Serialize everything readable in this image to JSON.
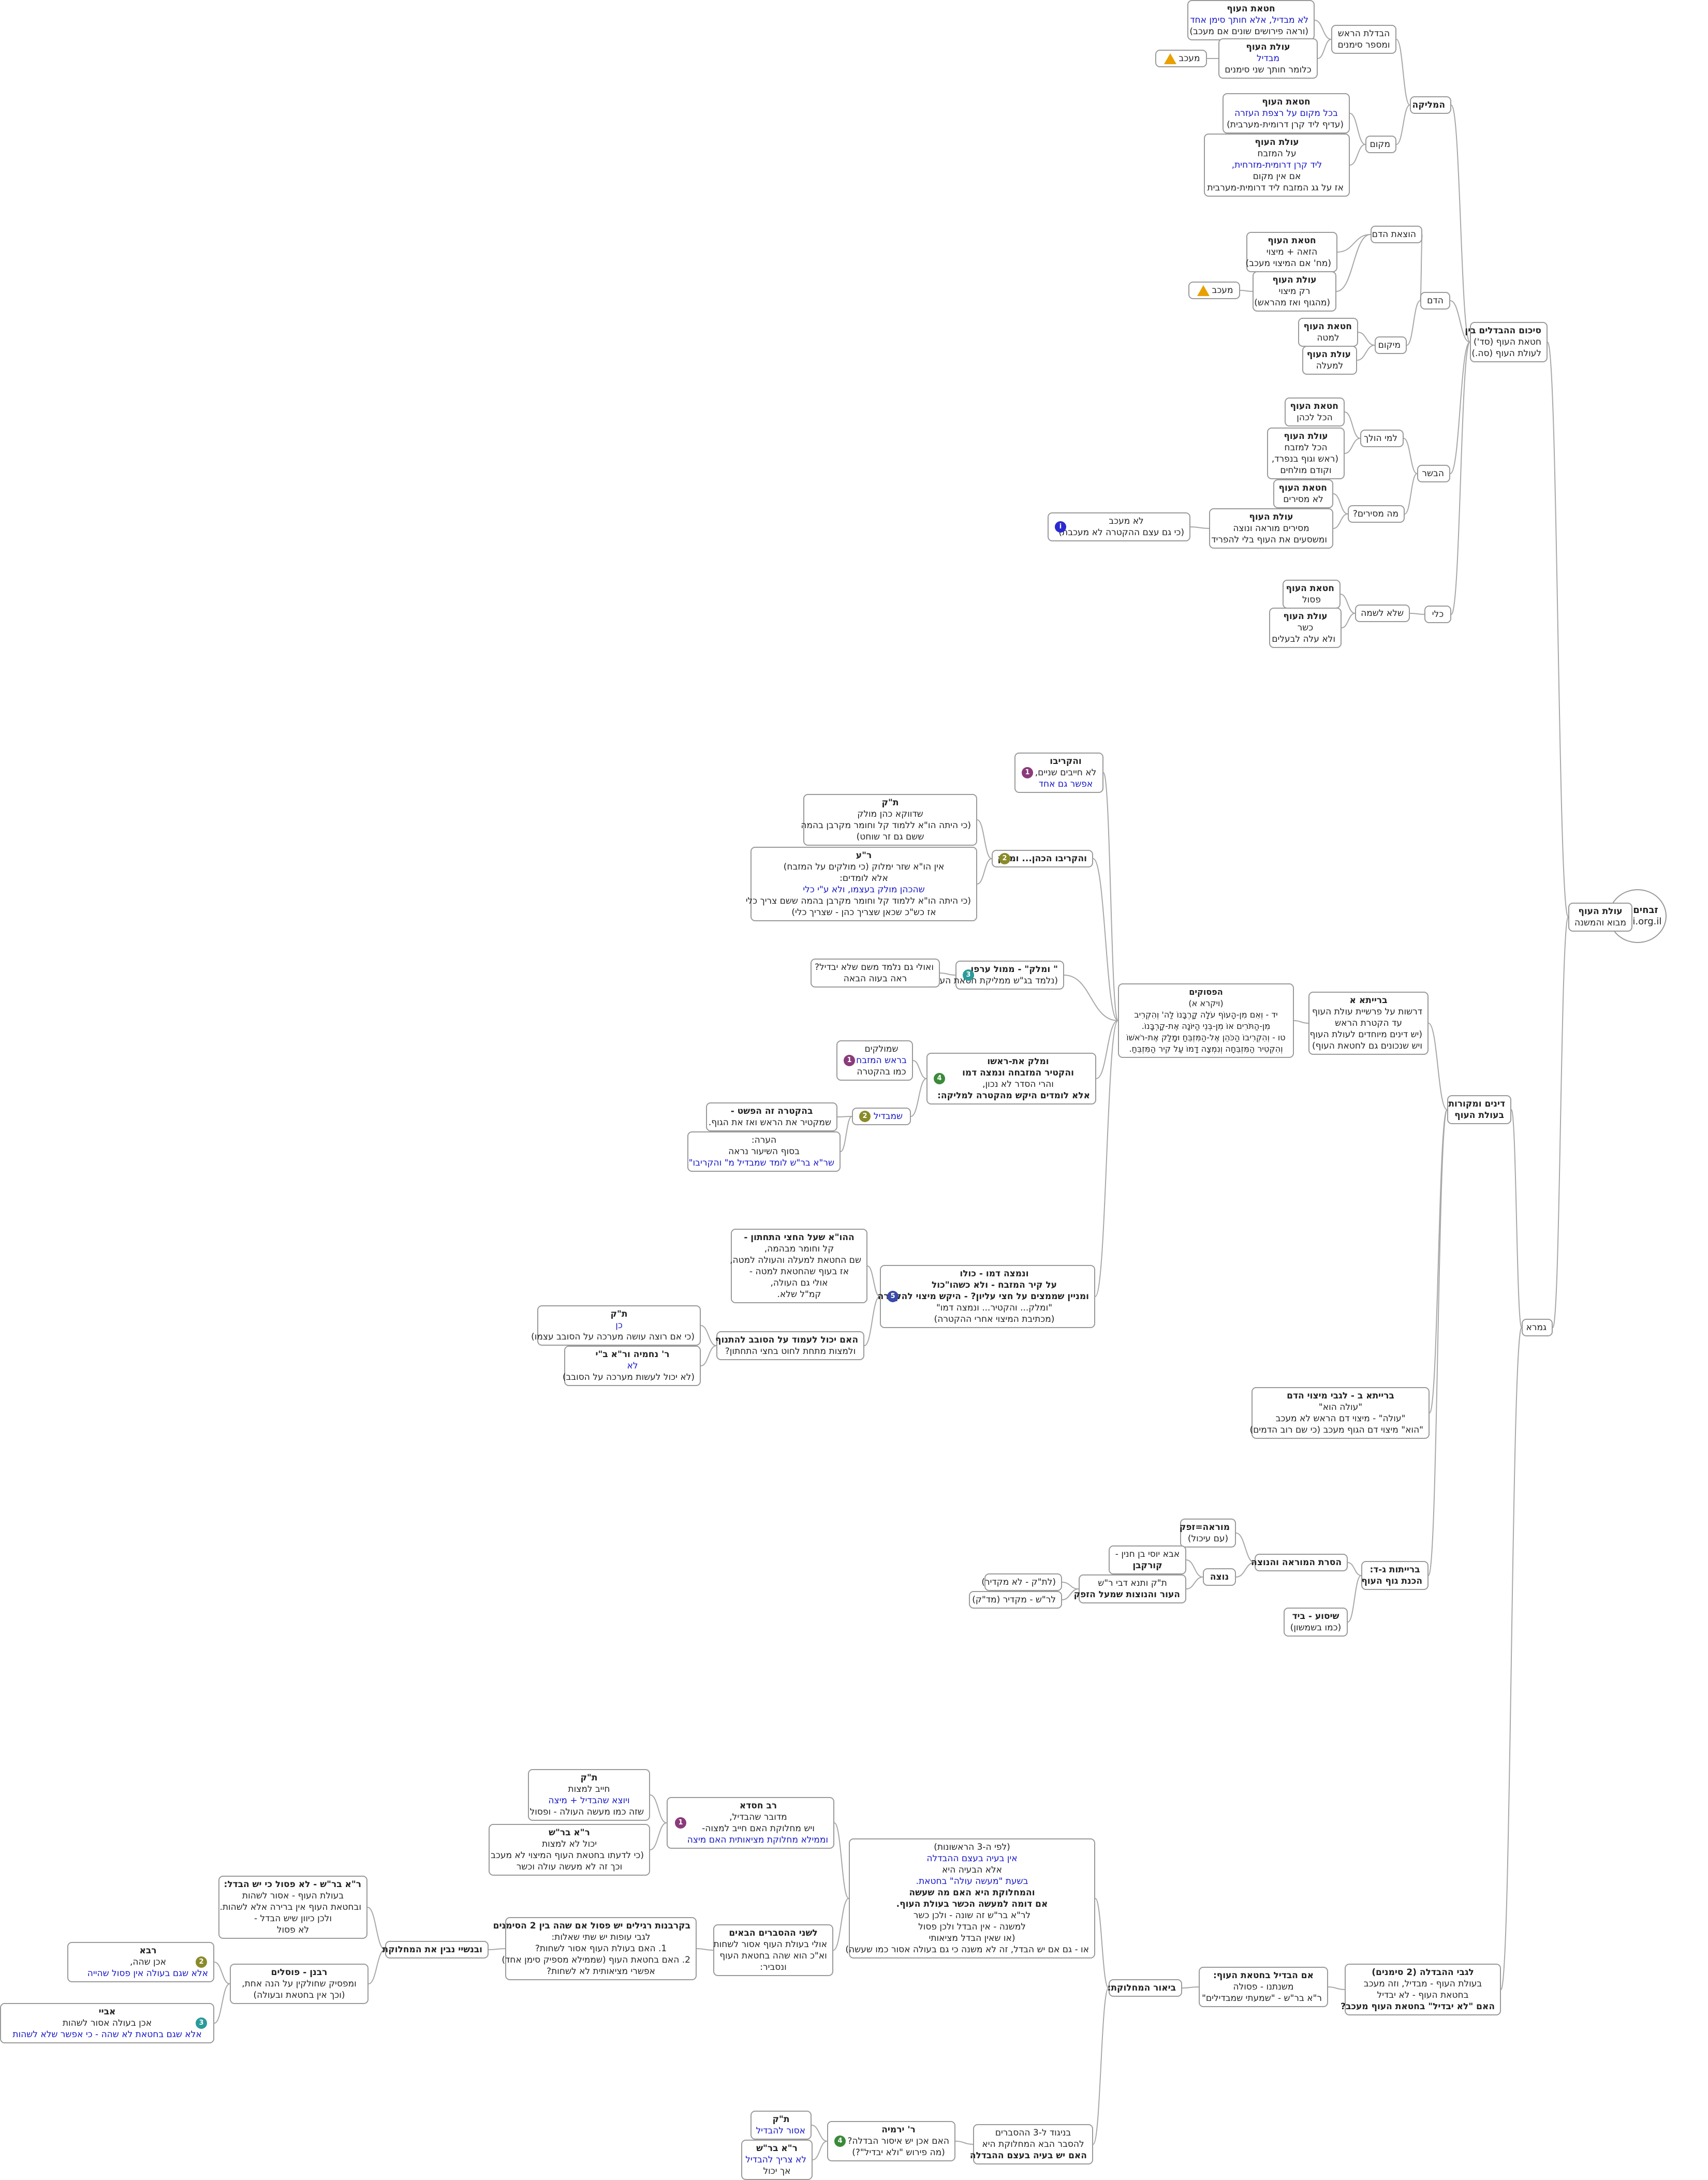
{
  "root": {
    "title": "זבחים סה",
    "sub": "sinai.org.il"
  },
  "center": {
    "l1": "עולת העוף",
    "l2": "מבוא והמשנה"
  },
  "summary": {
    "l1": "סיכום ההבדלים בין",
    "l2": "חטאת העוף (סד')",
    "l3": "לעולת העוף (סה.)"
  },
  "gemara": "גמרא",
  "section_sources": {
    "l1": "דינים ומקורות",
    "l2": "בעולת העוף"
  },
  "melika": "המליקה",
  "havdala": {
    "l1": "הבדלת הראש",
    "l2": "ומספר סימנים"
  },
  "hatat_havdala": {
    "l1": "חטאת העוף",
    "l2": "לא מבדיל, אלא חותך סימן אחד",
    "l3": "(וראה פירושים שונים אם מעכב)"
  },
  "olat_havdala": {
    "l1": "עולת העוף",
    "l2": "מבדיל",
    "l3": "כלומר חותך שני סימנים"
  },
  "meakev": "מעכב",
  "makom": "מקום",
  "hatat_makom": {
    "l1": "חטאת העוף",
    "l2": "בכל מקום על רצפת העזרה",
    "l3": "(עדיף ליד קרן דרומית-מערבית)"
  },
  "olat_makom": {
    "l1": "עולת העוף",
    "l2": "על המזבח",
    "l3": "ליד קרן דרומית-מזרחית,",
    "l4": "אם אין מקום",
    "l5": "אז על גג המזבח ליד דרומית-מערבית"
  },
  "dam": "הדם",
  "hotzaat_dam": "הוצאת הדם",
  "hatat_hotzaa": {
    "l1": "חטאת העוף",
    "l2": "הזאה + מיצוי",
    "l3": "(מח' אם המיצוי מעכב)"
  },
  "olat_hotzaa": {
    "l1": "עולת העוף",
    "l2": "רק מיצוי",
    "l3": "(מהגוף ואז מהראש)"
  },
  "meakev2": "מעכב",
  "mikom": "מיקום",
  "hatat_mikom": {
    "l1": "חטאת העוף",
    "l2": "למטה"
  },
  "olat_mikom": {
    "l1": "עולת העוף",
    "l2": "למעלה"
  },
  "basar": "הבשר",
  "lemi_holech": "למי הולך",
  "hatat_holech": {
    "l1": "חטאת העוף",
    "l2": "הכל לכהן"
  },
  "olat_holech": {
    "l1": "עולת העוף",
    "l2": "הכל למזבח",
    "l3": "(ראש וגוף בנפרד,",
    "l4": "וקודם מולחים"
  },
  "ma_mesirim": "מה מסירים?",
  "hatat_mesirim": {
    "l1": "חטאת העוף",
    "l2": "לא מסירים"
  },
  "olat_mesirim": {
    "l1": "עולת העוף",
    "l2": "מסירים מוראה ונוצה",
    "l3": "ומשסעים את העוף בלי להפריד"
  },
  "lo_meakev": {
    "l1": "לא מעכב",
    "l2": "(כי גם עצם ההקטרה לא מעכבת)"
  },
  "kli": "כלי",
  "shelo_lishma": "שלא לשמה",
  "hatat_lishma": {
    "l1": "חטאת העוף",
    "l2": "פסול"
  },
  "olat_lishma": {
    "l1": "עולת העוף",
    "l2": "כשר",
    "l3": "ולא עלה לבעלים"
  },
  "baraita_a": {
    "l1": "ברייתא א",
    "l2": "דרשות על פרשיית עולת העוף",
    "l3": "עד הקטרת הראש",
    "l4": "(יש דינים מיוחדים לעולת העוף",
    "l5": "ויש שנכונים גם לחטאת העוף)"
  },
  "pesukim": {
    "l1": "הפסוקים",
    "l2": "(ויקרא א)",
    "l3": "יד - וְאִם מִן-הָעוֹף עֹלָה קָרְבָּנוֹ לַה' וְהִקְרִיב",
    "l4": "מִן-הַתֹּרִים אוֹ מִן-בְּנֵי הַיּוֹנָה אֶת-קָרְבָּנוֹ.",
    "l5": "טו - וְהִקְרִיבוֹ הַכֹּהֵן אֶל-הַמִּזְבֵּחַ וּמָלַק אֶת-רֹאשׁוֹ",
    "l6": "וְהִקְטִיר הַמִּזְבֵּחָה וְנִמְצָה דָמוֹ עַל קִיר הַמִּזְבֵּחַ."
  },
  "vehikrivo": {
    "l1": "והקריבו",
    "l2": "לא חייבים שניים,",
    "l3": "אפשר גם אחד"
  },
  "vehikrivo_kohen": "והקריבו הכהן... ומלק",
  "tk_kohen": {
    "l1": "ת\"ק",
    "l2": "שדווקא כהן מולק",
    "l3": "(כי היתה הו\"א ללמוד קל וחומר מקרבן בהמה",
    "l4": "ששם גם זר שוחט)"
  },
  "ra_kohen": {
    "l1": "ר\"ע",
    "l2": "אין הו\"א שזר ימלוק (כי מולקים על המזבח)",
    "l3": "אלא לומדים:",
    "l4": "שהכהן מולק בעצמו, ולא ע\"י כלי",
    "l5": "(כי היתה הו\"א ללמוד קל וחומר מקרבן בהמה ששם צריך כלי",
    "l6": "אז כש\"כ שכאן שצריך כהן - שצריך כלי)"
  },
  "umalak_arfo": {
    "l1": "\" ומלק\" - ממול ערפו",
    "l2": "(נלמד בג\"ש ממליקת חטאת העוף)"
  },
  "umalak_note": {
    "l1": "ואולי גם נלמד משם שלא יבדיל?",
    "l2": "ראה בעוה הבאה"
  },
  "umalak_rosh": {
    "l1": "ומלק את-ראשו",
    "l2": "והקטיר המזבחה ונמצה דמו",
    "l3": "והרי הסדר לא נכון,",
    "l4": "אלא לומדים היקש מהקטרה למליקה:"
  },
  "molkim": {
    "l1": "שמולקים",
    "l2": "בראש המזבח",
    "l3": "כמו בהקטרה"
  },
  "shemavdil": "שמבדיל",
  "hakatara": {
    "l1": "בהקטרה זה הפשט -",
    "l2": "שמקטיר את הראש ואז את הגוף."
  },
  "hearah": {
    "l1": "הערה:",
    "l2": "בסוף השיעור נראה",
    "l3": "שר\"א בר\"ש לומד שמבדיל מ\" והקריבו\""
  },
  "venimtza": {
    "l1": "ונמצה דמו - כולו",
    "l2": "על קיר המזבח - ולא כשהו\"כול",
    "l3": "ומניין שממצים על חצי עליון? - היקש מיצוי להקטרה",
    "l4": "\"ומלק... והקטיר... ונמצה דמו\"",
    "l5": "(מכתיבת המיצוי אחרי ההקטרה)"
  },
  "hahava": {
    "l1": "ההו\"א שעל החצי התחתון -",
    "l2": "קל וחומר מבהמה,",
    "l3": "שם החטאת למעלה והעולה למטה,",
    "l4": "אז בעוף שהחטאת למטה -",
    "l5": "אולי גם העולה,",
    "l6": "קמ\"ל שלא."
  },
  "haim_yachol": {
    "l1": "האם יכול לעמוד על הסובב להתנוף",
    "l2": "ולמצות מתחת לחוט בחצי התחתון?"
  },
  "tk_sovev": {
    "l1": "ת\"ק",
    "l2": "כן",
    "l3": "(כי אם רוצה עושה מערכה על הסובב עצמו)"
  },
  "rn_sovev": {
    "l1": "ר' נחמיה ור\"א ב\"י",
    "l2": "לא",
    "l3": "(לא יכול לעשות מערכה על הסובב)"
  },
  "baraita_b": {
    "l1": "ברייתא ב - לגבי מיצוי הדם",
    "l2": "\"עולה הוא\"",
    "l3": "\"עולה\" - מיצוי דם הראש לא מעכב",
    "l4": "\"הוא\" מיצוי דם הגוף מעכב (כי שם רוב הדמים)"
  },
  "baraitot_cd": {
    "l1": "ברייתות ג-ד:",
    "l2": "הכנת גוף העוף"
  },
  "hasarat": "הסרת המוראה והנוצה",
  "muraa": {
    "l1": "מוראה=זפק",
    "l2": "(עם עיכול)"
  },
  "notza": "נוצה",
  "aba_yosi": {
    "l1": "אבא יוסי בן חנין -",
    "l2": "קורקבן"
  },
  "tk_tana": {
    "l1": "ת\"ק ותנא דבי ר\"ש",
    "l2": "העור והנוצות שמעל הזפק"
  },
  "tk_lo": "(לת\"ק - לא מקדיר)",
  "rash_makdir": "לר\"ש - מקדיר (מד\"ק)",
  "shisua": {
    "l1": "שיסוע - ביד",
    "l2": "(כמו בשמשון)"
  },
  "ligvei": {
    "l1": "לגבי ההבדלה (2 סימנים)",
    "l2": "בעולת העוף - מבדיל, וזה מעכב",
    "l3": "בחטאת העוף - לא יבדיל",
    "l4": "האם \"לא יבדיל\" בחטאת העוף מעכב?"
  },
  "im_hivdil": {
    "l1": "אם הבדיל בחטאת העוף:",
    "l2": "משנתנו - פסולה",
    "l3": "ר\"א בר\"ש - \"שמעתי שמבדילים\""
  },
  "beur": "ביאור המחלוקת:",
  "lfi3": {
    "l1": "(לפי ה-3 הראשונות)",
    "l2": "אין בעיה בעצם ההבדלה",
    "l3": "אלא הבעיה היא",
    "l4": "בשעת \"מעשה עולה\" בחטאת.",
    "l5": "והמחלוקת היא האם מה שעשה",
    "l6": "אם דומה למעשה הכשר בעולת העוף.",
    "l7": "לר\"א בר\"ש זה שונה - ולכן כשר",
    "l8": "למשנה - אין הבדל ולכן פסול",
    "l9": "(או שאין הבדל מציאותי",
    "l10": "או - גם אם יש הבדל, זה לא משנה כי גם בעולה אסור כמו שעשה)"
  },
  "rav_hisda": {
    "l1": "רב חסדא",
    "l2": "מדובר שהבדיל,",
    "l3": "ויש מחלוקת האם חייב למצוה-",
    "l4": "וממילא מחלוקת מציאותית האם מיצה"
  },
  "tk_hisda": {
    "l1": "ת\"ק",
    "l2": "חייב למצות",
    "l3": "ויוצא שהבדיל + מיצה",
    "l4": "שזה כמו מעשה העולה - ופסול"
  },
  "rash_hisda": {
    "l1": "ר\"א בר\"ש",
    "l2": "יכול לא למצות",
    "l3": "(כי לדעתו בחטאת העוף המיצוי לא מעכב",
    "l4": "וכך זה לא מעשה עולה וכשר"
  },
  "lishnei": {
    "l1": "לשני ההסברים הבאים",
    "l2": "אולי בעולת העוף אסור לשחות",
    "l3": "וא\"כ הוא שהה בחטאת העוף",
    "l4": "ונסביר:"
  },
  "bikrovot": {
    "l1": "בקרבנות רגילים יש פסול אם שהה בין 2 הסימנים",
    "l2": "לגבי עופות יש שתי שאלות:",
    "l3": "1. האם בעולת העוף אסור לשחות?",
    "l4": "2. האם בחטאת העוף (שממילא מספיק סימן אחד)",
    "l5": "אפשרי מציאותית לא לשחות?"
  },
  "uvanshei": "ובנשיי נבין את המחלוקת",
  "ra_bars_shehiya": {
    "l1": "ר\"א בר\"ש - לא פסול כי יש הבדל:",
    "l2": "בעולת העוף - אסור לשהות",
    "l3": "ובחטאת העוף אין ברירה אלא לשהות.",
    "l4": "ולכן כיוון שיש הבדל -",
    "l5": "לא פסול"
  },
  "raba": {
    "l1": "רבא",
    "l2": "אכן שהה,",
    "l3": "אלא שגם בעולה אין פסול שהייה"
  },
  "rabanan_posilin": {
    "l1": "רבנן - פוסלים",
    "l2": "ומפסיק שחולקין על הנה אחת,",
    "l3": "(וכך אין בחטאת ובעולה)"
  },
  "abaye": {
    "l1": "אביי",
    "l2": "אכן בעולה אסור לשהות",
    "l3": "אלא שגם בחטאת לא שהה - כי אפשר שלא לשהות"
  },
  "beguod": {
    "l1": "בניגוד ל-3 ההסברים",
    "l2": "להסבר הבא המחלוקת היא",
    "l3": "האם יש בעיה בעצם ההבדלה"
  },
  "r_yirmia": {
    "l1": "ר' ירמיה",
    "l2": "האם אכן יש איסור הבדלה?",
    "l3": "(מה פירוש \"ולא יבדיל\"?)"
  },
  "tk_yirmia": {
    "l1": "ת\"ק",
    "l2": "אסור להבדיל"
  },
  "rash_yirmia": {
    "l1": "ר\"א בר\"ש",
    "l2": "לא צריך להבדיל",
    "l3": "אך יכול"
  }
}
